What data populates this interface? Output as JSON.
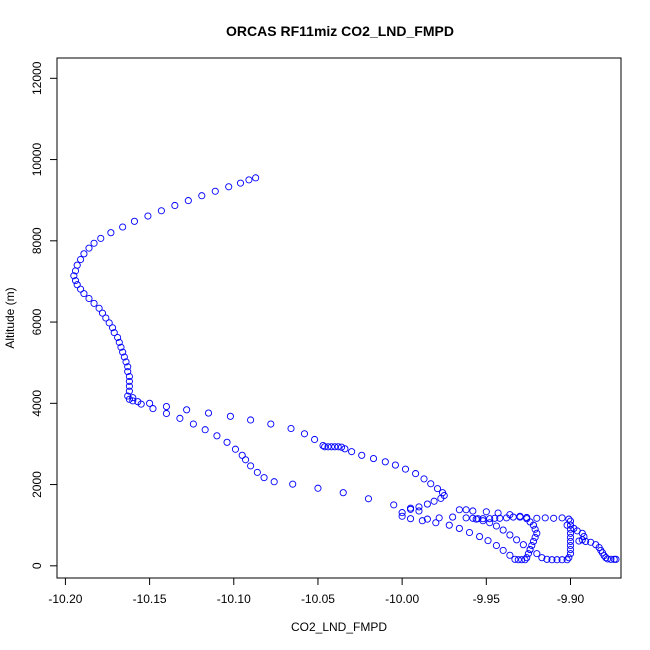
{
  "chart_data": {
    "type": "scatter",
    "title": "ORCAS RF11miz CO2_LND_FMPD",
    "xlabel": "CO2_LND_FMPD",
    "ylabel": "Altitude (m)",
    "xlim": [
      -10.205,
      -9.87
    ],
    "ylim": [
      -300,
      12500
    ],
    "x_ticks": [
      -10.2,
      -10.15,
      -10.1,
      -10.05,
      -10.0,
      -9.95,
      -9.9
    ],
    "x_tick_labels": [
      "-10.20",
      "-10.15",
      "-10.10",
      "-10.05",
      "-10.00",
      "-9.95",
      "-9.90"
    ],
    "y_ticks": [
      0,
      2000,
      4000,
      6000,
      8000,
      10000,
      12000
    ],
    "y_tick_labels": [
      "0",
      "2000",
      "4000",
      "6000",
      "8000",
      "10000",
      "12000"
    ],
    "grid": false,
    "marker": "open-circle",
    "color": "#0000ff",
    "series": [
      {
        "points": [
          [
            -10.087,
            9550
          ],
          [
            -10.091,
            9500
          ],
          [
            -10.096,
            9420
          ],
          [
            -10.103,
            9330
          ],
          [
            -10.111,
            9220
          ],
          [
            -10.119,
            9110
          ],
          [
            -10.127,
            8990
          ],
          [
            -10.135,
            8870
          ],
          [
            -10.143,
            8740
          ],
          [
            -10.151,
            8610
          ],
          [
            -10.159,
            8480
          ],
          [
            -10.166,
            8340
          ],
          [
            -10.173,
            8200
          ],
          [
            -10.179,
            8060
          ],
          [
            -10.183,
            7940
          ],
          [
            -10.186,
            7820
          ],
          [
            -10.189,
            7680
          ],
          [
            -10.191,
            7540
          ],
          [
            -10.193,
            7400
          ],
          [
            -10.194,
            7260
          ],
          [
            -10.195,
            7140
          ],
          [
            -10.194,
            7020
          ],
          [
            -10.193,
            6920
          ],
          [
            -10.191,
            6810
          ],
          [
            -10.189,
            6700
          ],
          [
            -10.186,
            6580
          ],
          [
            -10.183,
            6460
          ],
          [
            -10.18,
            6340
          ],
          [
            -10.178,
            6220
          ],
          [
            -10.176,
            6100
          ],
          [
            -10.174,
            5980
          ],
          [
            -10.172,
            5860
          ],
          [
            -10.171,
            5740
          ],
          [
            -10.169,
            5620
          ],
          [
            -10.168,
            5500
          ],
          [
            -10.167,
            5380
          ],
          [
            -10.166,
            5260
          ],
          [
            -10.165,
            5140
          ],
          [
            -10.164,
            5020
          ],
          [
            -10.163,
            4900
          ],
          [
            -10.163,
            4780
          ],
          [
            -10.162,
            4660
          ],
          [
            -10.162,
            4540
          ],
          [
            -10.162,
            4420
          ],
          [
            -10.162,
            4300
          ],
          [
            -10.163,
            4180
          ],
          [
            -10.162,
            4100
          ],
          [
            -10.16,
            4060
          ],
          [
            -10.157,
            4040
          ],
          [
            -10.15,
            4000
          ],
          [
            -10.14,
            3920
          ],
          [
            -10.128,
            3840
          ],
          [
            -10.115,
            3760
          ],
          [
            -10.102,
            3680
          ],
          [
            -10.09,
            3590
          ],
          [
            -10.078,
            3490
          ],
          [
            -10.066,
            3380
          ],
          [
            -10.058,
            3250
          ],
          [
            -10.052,
            3110
          ],
          [
            -10.047,
            2960
          ],
          [
            -10.046,
            2930
          ],
          [
            -10.044,
            2930
          ],
          [
            -10.042,
            2930
          ],
          [
            -10.04,
            2930
          ],
          [
            -10.038,
            2930
          ],
          [
            -10.036,
            2920
          ],
          [
            -10.034,
            2880
          ],
          [
            -10.03,
            2810
          ],
          [
            -10.024,
            2720
          ],
          [
            -10.017,
            2640
          ],
          [
            -10.01,
            2560
          ],
          [
            -10.004,
            2480
          ],
          [
            -9.998,
            2380
          ],
          [
            -9.992,
            2270
          ],
          [
            -9.987,
            2140
          ],
          [
            -9.983,
            2020
          ],
          [
            -9.979,
            1900
          ],
          [
            -9.976,
            1800
          ],
          [
            -9.975,
            1730
          ],
          [
            -9.977,
            1660
          ],
          [
            -9.981,
            1590
          ],
          [
            -9.985,
            1520
          ],
          [
            -9.99,
            1450
          ],
          [
            -9.995,
            1390
          ],
          [
            -10.0,
            1310
          ],
          [
            -10.0,
            1220
          ],
          [
            -10.16,
            4140
          ],
          [
            -10.155,
            3980
          ],
          [
            -10.148,
            3870
          ],
          [
            -10.14,
            3750
          ],
          [
            -10.132,
            3630
          ],
          [
            -10.124,
            3490
          ],
          [
            -10.117,
            3350
          ],
          [
            -10.11,
            3200
          ],
          [
            -10.104,
            3040
          ],
          [
            -10.099,
            2870
          ],
          [
            -10.095,
            2720
          ],
          [
            -10.093,
            2610
          ],
          [
            -10.09,
            2460
          ],
          [
            -10.086,
            2300
          ],
          [
            -10.082,
            2170
          ],
          [
            -10.076,
            2070
          ],
          [
            -10.065,
            2010
          ],
          [
            -10.05,
            1910
          ],
          [
            -10.035,
            1800
          ],
          [
            -10.02,
            1650
          ],
          [
            -10.005,
            1500
          ],
          [
            -9.995,
            1420
          ],
          [
            -9.99,
            1350
          ],
          [
            -9.985,
            1150
          ],
          [
            -9.978,
            1180
          ],
          [
            -9.97,
            1200
          ],
          [
            -9.962,
            1180
          ],
          [
            -9.958,
            1170
          ],
          [
            -9.955,
            1160
          ],
          [
            -9.952,
            1160
          ],
          [
            -9.948,
            1160
          ],
          [
            -9.945,
            1170
          ],
          [
            -9.942,
            1170
          ],
          [
            -9.938,
            1180
          ],
          [
            -9.934,
            1200
          ],
          [
            -9.93,
            1200
          ],
          [
            -9.926,
            1190
          ],
          [
            -9.92,
            1170
          ],
          [
            -9.915,
            1180
          ],
          [
            -9.91,
            1170
          ],
          [
            -9.905,
            1180
          ],
          [
            -9.901,
            1150
          ],
          [
            -9.9,
            1100
          ],
          [
            -9.9,
            1000
          ],
          [
            -9.9,
            900
          ],
          [
            -9.9,
            800
          ],
          [
            -9.9,
            700
          ],
          [
            -9.9,
            600
          ],
          [
            -9.9,
            500
          ],
          [
            -9.9,
            400
          ],
          [
            -9.9,
            300
          ],
          [
            -9.901,
            200
          ],
          [
            -9.902,
            150
          ],
          [
            -9.905,
            150
          ],
          [
            -9.908,
            150
          ],
          [
            -9.911,
            150
          ],
          [
            -9.914,
            160
          ],
          [
            -9.917,
            200
          ],
          [
            -9.92,
            300
          ],
          [
            -9.924,
            400
          ],
          [
            -9.928,
            520
          ],
          [
            -9.932,
            640
          ],
          [
            -9.936,
            760
          ],
          [
            -9.94,
            880
          ],
          [
            -9.944,
            980
          ],
          [
            -9.948,
            1060
          ],
          [
            -9.952,
            1110
          ],
          [
            -9.956,
            1150
          ],
          [
            -9.962,
            1380
          ],
          [
            -9.966,
            1380
          ],
          [
            -9.958,
            1350
          ],
          [
            -9.95,
            1330
          ],
          [
            -9.943,
            1300
          ],
          [
            -9.936,
            1260
          ],
          [
            -9.93,
            1220
          ],
          [
            -9.926,
            1160
          ],
          [
            -9.924,
            1080
          ],
          [
            -9.922,
            1000
          ],
          [
            -9.921,
            900
          ],
          [
            -9.92,
            800
          ],
          [
            -9.921,
            700
          ],
          [
            -9.922,
            600
          ],
          [
            -9.923,
            500
          ],
          [
            -9.924,
            400
          ],
          [
            -9.925,
            300
          ],
          [
            -9.926,
            200
          ],
          [
            -9.927,
            150
          ],
          [
            -9.929,
            150
          ],
          [
            -9.931,
            150
          ],
          [
            -9.933,
            160
          ],
          [
            -9.936,
            260
          ],
          [
            -9.94,
            380
          ],
          [
            -9.944,
            500
          ],
          [
            -9.949,
            620
          ],
          [
            -9.954,
            720
          ],
          [
            -9.96,
            820
          ],
          [
            -9.966,
            920
          ],
          [
            -9.972,
            1000
          ],
          [
            -9.98,
            1060
          ],
          [
            -9.988,
            1110
          ],
          [
            -9.995,
            1160
          ],
          [
            -9.902,
            1000
          ],
          [
            -9.898,
            920
          ],
          [
            -9.896,
            860
          ],
          [
            -9.893,
            800
          ],
          [
            -9.892,
            720
          ],
          [
            -9.893,
            640
          ],
          [
            -9.895,
            610
          ],
          [
            -9.891,
            600
          ],
          [
            -9.888,
            580
          ],
          [
            -9.885,
            520
          ],
          [
            -9.883,
            450
          ],
          [
            -9.882,
            380
          ],
          [
            -9.881,
            320
          ],
          [
            -9.88,
            250
          ],
          [
            -9.879,
            200
          ],
          [
            -9.878,
            170
          ],
          [
            -9.876,
            160
          ],
          [
            -9.874,
            160
          ],
          [
            -9.873,
            160
          ]
        ]
      }
    ]
  }
}
